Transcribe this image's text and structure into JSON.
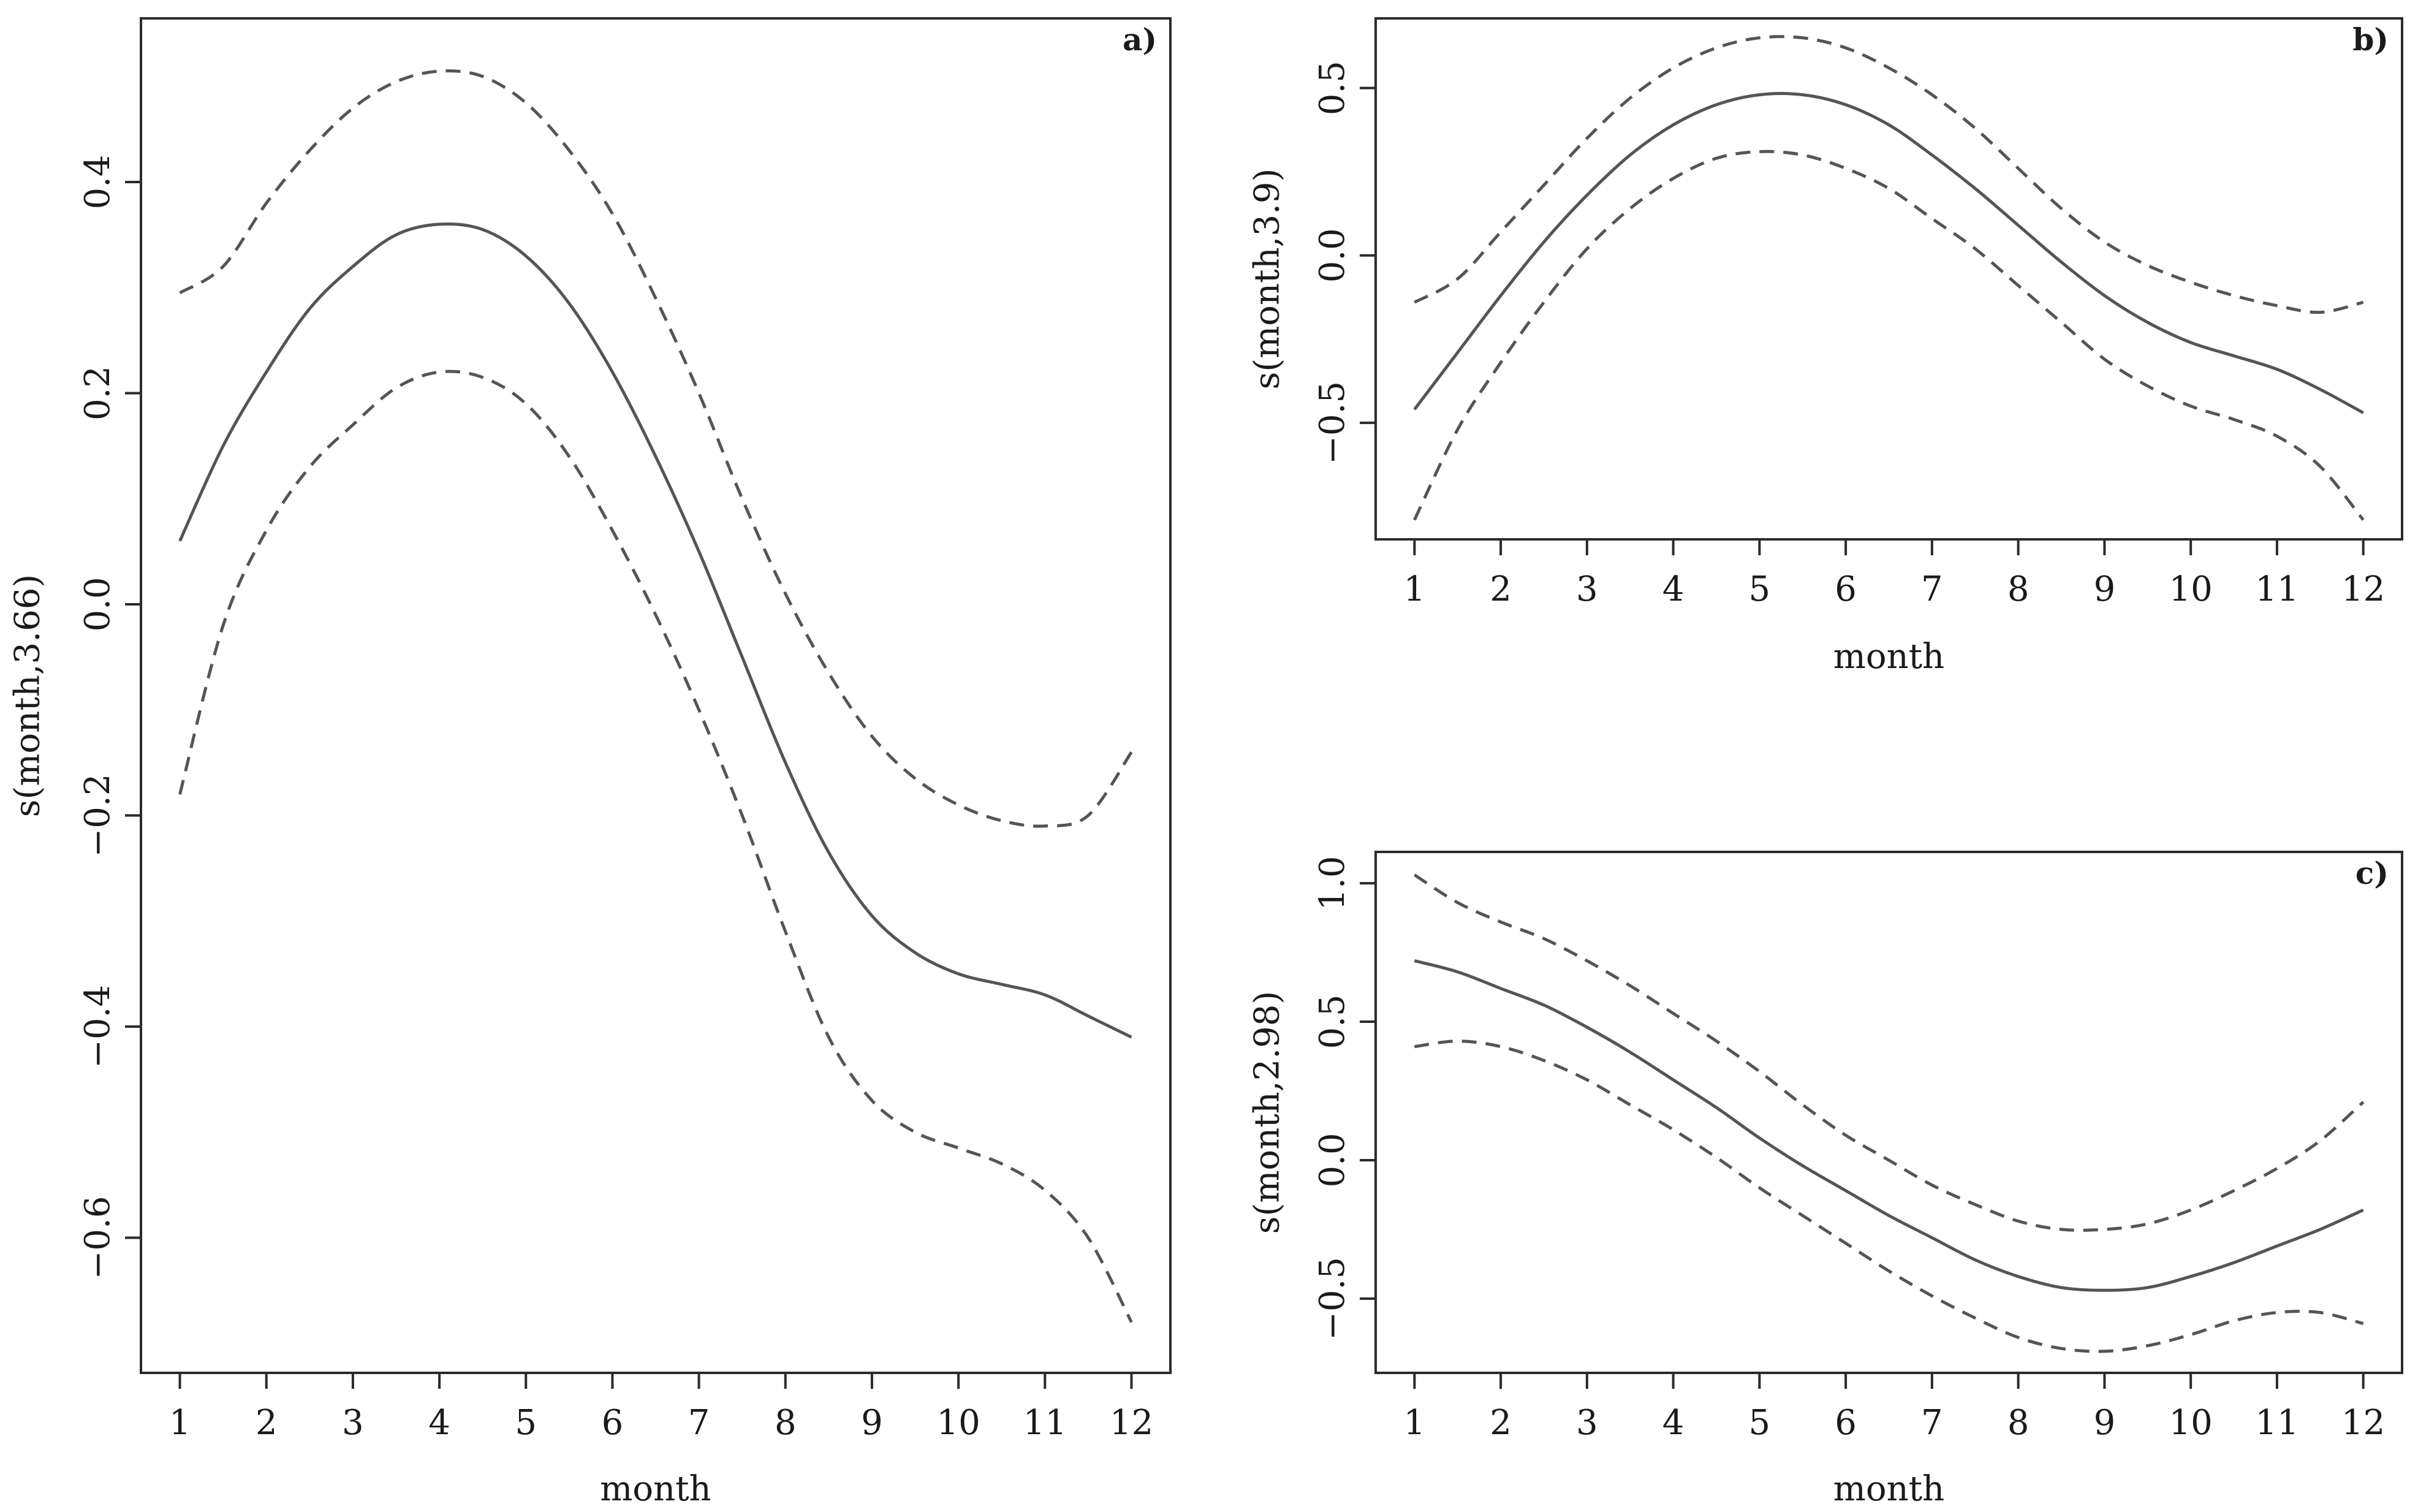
{
  "chart_data": [
    {
      "type": "line",
      "panel_label": "a)",
      "xlabel": "month",
      "ylabel": "s(month,3.66)",
      "xlim": [
        0.55,
        12.45
      ],
      "ylim": [
        -0.728,
        0.555
      ],
      "x_ticks": [
        1,
        2,
        3,
        4,
        5,
        6,
        7,
        8,
        9,
        10,
        11,
        12
      ],
      "x_tick_labels": [
        "1",
        "2",
        "3",
        "4",
        "5",
        "6",
        "7",
        "8",
        "9",
        "10",
        "11",
        "12"
      ],
      "y_ticks": [
        -0.6,
        -0.4,
        -0.2,
        0.0,
        0.2,
        0.4
      ],
      "y_tick_labels": [
        "−0.6",
        "−0.4",
        "−0.2",
        "0.0",
        "0.2",
        "0.4"
      ],
      "x": [
        1,
        1.5,
        2,
        2.5,
        3,
        3.5,
        4,
        4.5,
        5,
        5.5,
        6,
        6.5,
        7,
        7.5,
        8,
        8.5,
        9,
        9.5,
        10,
        10.5,
        11,
        11.5,
        12
      ],
      "series": [
        {
          "name": "fit",
          "style": "solid",
          "values": [
            0.06,
            0.15,
            0.22,
            0.28,
            0.32,
            0.35,
            0.36,
            0.355,
            0.33,
            0.285,
            0.22,
            0.14,
            0.05,
            -0.05,
            -0.15,
            -0.235,
            -0.295,
            -0.33,
            -0.35,
            -0.36,
            -0.37,
            -0.39,
            -0.41
          ]
        },
        {
          "name": "upper",
          "style": "dashed",
          "values": [
            0.295,
            0.32,
            0.38,
            0.43,
            0.47,
            0.495,
            0.505,
            0.5,
            0.475,
            0.43,
            0.37,
            0.29,
            0.2,
            0.1,
            0.01,
            -0.065,
            -0.125,
            -0.165,
            -0.19,
            -0.205,
            -0.21,
            -0.2,
            -0.14
          ]
        },
        {
          "name": "lower",
          "style": "dashed",
          "values": [
            -0.18,
            -0.02,
            0.07,
            0.13,
            0.17,
            0.205,
            0.22,
            0.215,
            0.19,
            0.14,
            0.07,
            -0.01,
            -0.1,
            -0.2,
            -0.31,
            -0.41,
            -0.47,
            -0.5,
            -0.515,
            -0.53,
            -0.555,
            -0.6,
            -0.68
          ]
        }
      ]
    },
    {
      "type": "line",
      "panel_label": "b)",
      "xlabel": "month",
      "ylabel": "s(month,3.9)",
      "xlim": [
        0.55,
        12.45
      ],
      "ylim": [
        -0.848,
        0.708
      ],
      "x_ticks": [
        1,
        2,
        3,
        4,
        5,
        6,
        7,
        8,
        9,
        10,
        11,
        12
      ],
      "x_tick_labels": [
        "1",
        "2",
        "3",
        "4",
        "5",
        "6",
        "7",
        "8",
        "9",
        "10",
        "11",
        "12"
      ],
      "y_ticks": [
        -0.5,
        0.0,
        0.5
      ],
      "y_tick_labels": [
        "−0.5",
        "0.0",
        "0.5"
      ],
      "x": [
        1,
        1.5,
        2,
        2.5,
        3,
        3.5,
        4,
        4.5,
        5,
        5.5,
        6,
        6.5,
        7,
        7.5,
        8,
        8.5,
        9,
        9.5,
        10,
        10.5,
        11,
        11.5,
        12
      ],
      "series": [
        {
          "name": "fit",
          "style": "solid",
          "values": [
            -0.46,
            -0.29,
            -0.12,
            0.04,
            0.18,
            0.3,
            0.39,
            0.45,
            0.48,
            0.48,
            0.45,
            0.39,
            0.3,
            0.2,
            0.09,
            -0.02,
            -0.12,
            -0.2,
            -0.26,
            -0.3,
            -0.34,
            -0.4,
            -0.47
          ]
        },
        {
          "name": "upper",
          "style": "dashed",
          "values": [
            -0.14,
            -0.07,
            0.07,
            0.21,
            0.35,
            0.47,
            0.56,
            0.62,
            0.65,
            0.65,
            0.62,
            0.56,
            0.48,
            0.38,
            0.26,
            0.14,
            0.04,
            -0.03,
            -0.08,
            -0.12,
            -0.15,
            -0.17,
            -0.14
          ]
        },
        {
          "name": "lower",
          "style": "dashed",
          "values": [
            -0.79,
            -0.52,
            -0.32,
            -0.14,
            0.02,
            0.14,
            0.23,
            0.29,
            0.31,
            0.3,
            0.26,
            0.2,
            0.11,
            0.02,
            -0.09,
            -0.2,
            -0.31,
            -0.39,
            -0.45,
            -0.49,
            -0.54,
            -0.63,
            -0.79
          ]
        }
      ]
    },
    {
      "type": "line",
      "panel_label": "c)",
      "xlabel": "month",
      "ylabel": "s(month,2.98)",
      "xlim": [
        0.55,
        12.45
      ],
      "ylim": [
        -0.768,
        1.113
      ],
      "x_ticks": [
        1,
        2,
        3,
        4,
        5,
        6,
        7,
        8,
        9,
        10,
        11,
        12
      ],
      "x_tick_labels": [
        "1",
        "2",
        "3",
        "4",
        "5",
        "6",
        "7",
        "8",
        "9",
        "10",
        "11",
        "12"
      ],
      "y_ticks": [
        -0.5,
        0.0,
        0.5,
        1.0
      ],
      "y_tick_labels": [
        "−0.5",
        "0.0",
        "0.5",
        "1.0"
      ],
      "x": [
        1,
        1.5,
        2,
        2.5,
        3,
        3.5,
        4,
        4.5,
        5,
        5.5,
        6,
        6.5,
        7,
        7.5,
        8,
        8.5,
        9,
        9.5,
        10,
        10.5,
        11,
        11.5,
        12
      ],
      "series": [
        {
          "name": "fit",
          "style": "solid",
          "values": [
            0.72,
            0.68,
            0.62,
            0.56,
            0.48,
            0.39,
            0.29,
            0.19,
            0.08,
            -0.02,
            -0.11,
            -0.2,
            -0.28,
            -0.36,
            -0.42,
            -0.46,
            -0.47,
            -0.46,
            -0.42,
            -0.37,
            -0.31,
            -0.25,
            -0.18
          ]
        },
        {
          "name": "upper",
          "style": "dashed",
          "values": [
            1.03,
            0.93,
            0.86,
            0.8,
            0.72,
            0.63,
            0.53,
            0.43,
            0.32,
            0.2,
            0.09,
            0.0,
            -0.09,
            -0.16,
            -0.22,
            -0.25,
            -0.25,
            -0.23,
            -0.18,
            -0.11,
            -0.03,
            0.07,
            0.21
          ]
        },
        {
          "name": "lower",
          "style": "dashed",
          "values": [
            0.41,
            0.43,
            0.41,
            0.36,
            0.29,
            0.2,
            0.11,
            0.01,
            -0.1,
            -0.2,
            -0.3,
            -0.4,
            -0.49,
            -0.57,
            -0.64,
            -0.68,
            -0.69,
            -0.67,
            -0.63,
            -0.58,
            -0.55,
            -0.55,
            -0.59
          ]
        }
      ]
    }
  ]
}
